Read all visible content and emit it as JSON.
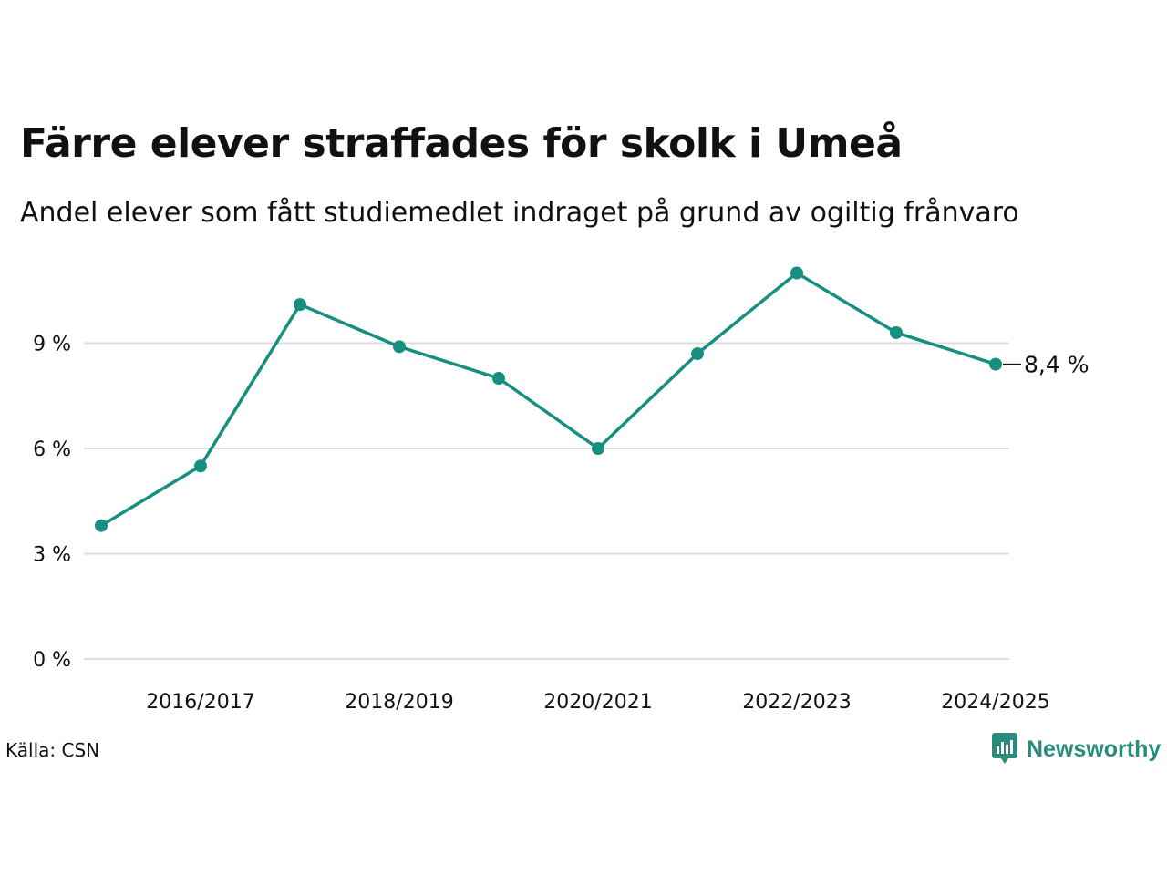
{
  "header": {
    "title": "Färre elever straffades för skolk i Umeå",
    "subtitle": "Andel elever som fått studiemedlet indraget på grund av ogiltig frånvaro"
  },
  "footer": {
    "source": "Källa: CSN",
    "brand": "Newsworthy",
    "brand_icon": "newsworthy-logo-icon"
  },
  "colors": {
    "line": "#168f80",
    "grid": "#dddddd",
    "brand": "#2a8a7b"
  },
  "chart_data": {
    "type": "line",
    "x": [
      "2015/2016",
      "2016/2017",
      "2017/2018",
      "2018/2019",
      "2019/2020",
      "2020/2021",
      "2021/2022",
      "2022/2023",
      "2023/2024",
      "2024/2025"
    ],
    "series": [
      {
        "values": [
          3.8,
          5.5,
          10.1,
          8.9,
          8.0,
          6.0,
          8.7,
          11.0,
          9.3,
          8.4
        ]
      }
    ],
    "x_tick_labels": [
      "2016/2017",
      "2018/2019",
      "2020/2021",
      "2022/2023",
      "2024/2025"
    ],
    "y_ticks": [
      0,
      3,
      6,
      9
    ],
    "y_tick_labels": [
      "0 %",
      "3 %",
      "6 %",
      "9 %"
    ],
    "ylim": [
      0,
      11
    ],
    "end_label": "8,4 %",
    "grid": "horizontal",
    "markers": true
  }
}
